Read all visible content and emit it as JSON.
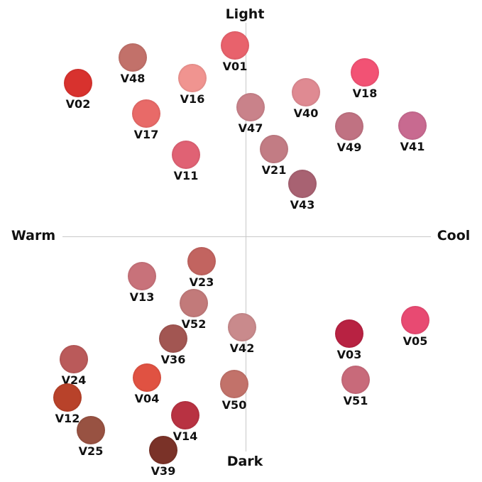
{
  "axes": {
    "top": "Light",
    "bottom": "Dark",
    "left": "Warm",
    "right": "Cool"
  },
  "swatches": [
    {
      "id": "V01",
      "color": "#e8626c"
    },
    {
      "id": "V48",
      "color": "#c2716a"
    },
    {
      "id": "V02",
      "color": "#d8322e"
    },
    {
      "id": "V16",
      "color": "#f09490"
    },
    {
      "id": "V18",
      "color": "#f25274"
    },
    {
      "id": "V40",
      "color": "#df8a92"
    },
    {
      "id": "V17",
      "color": "#e86a68"
    },
    {
      "id": "V47",
      "color": "#c9828a"
    },
    {
      "id": "V49",
      "color": "#c07282"
    },
    {
      "id": "V41",
      "color": "#c86a90"
    },
    {
      "id": "V21",
      "color": "#c27c84"
    },
    {
      "id": "V11",
      "color": "#e06274"
    },
    {
      "id": "V43",
      "color": "#a86272"
    },
    {
      "id": "V23",
      "color": "#c26460"
    },
    {
      "id": "V13",
      "color": "#c8727a"
    },
    {
      "id": "V52",
      "color": "#c27a7a"
    },
    {
      "id": "V42",
      "color": "#c98a8c"
    },
    {
      "id": "V36",
      "color": "#a25652"
    },
    {
      "id": "V03",
      "color": "#b82242"
    },
    {
      "id": "V05",
      "color": "#e84a72"
    },
    {
      "id": "V24",
      "color": "#ba5a5a"
    },
    {
      "id": "V04",
      "color": "#e05242"
    },
    {
      "id": "V51",
      "color": "#c86a7a"
    },
    {
      "id": "V50",
      "color": "#c2726a"
    },
    {
      "id": "V12",
      "color": "#b8422a"
    },
    {
      "id": "V14",
      "color": "#b83242"
    },
    {
      "id": "V25",
      "color": "#985242"
    },
    {
      "id": "V39",
      "color": "#7a3228"
    }
  ]
}
